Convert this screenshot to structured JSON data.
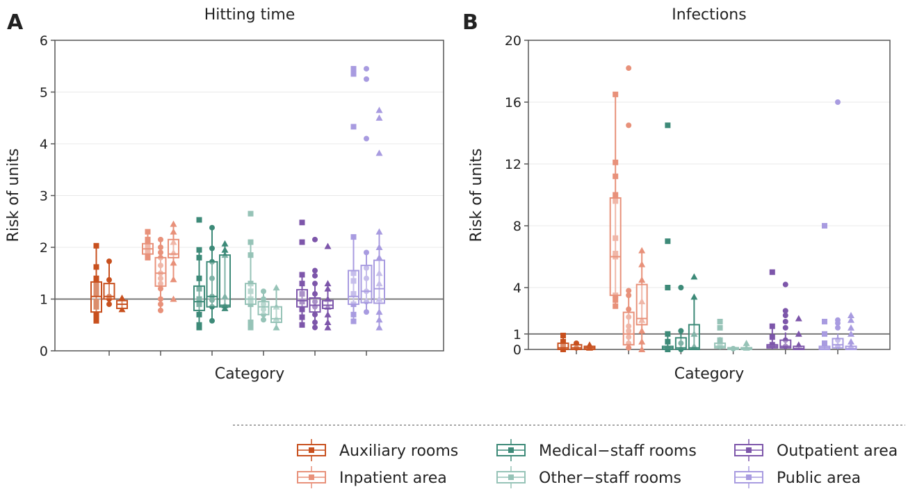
{
  "legend": [
    {
      "label": "Auxiliary rooms",
      "color": "#c8501e"
    },
    {
      "label": "Inpatient area",
      "color": "#e8917a"
    },
    {
      "label": "Medical−staff rooms",
      "color": "#3d8a78"
    },
    {
      "label": "Other−staff rooms",
      "color": "#96c3b7"
    },
    {
      "label": "Outpatient area",
      "color": "#7d56aa"
    },
    {
      "label": "Public area",
      "color": "#a89be0"
    }
  ],
  "chart_data": [
    {
      "panel": "A",
      "type": "box",
      "title": "Hitting time",
      "xlabel": "Category",
      "ylabel": "Risk of units",
      "ylim": [
        0,
        6
      ],
      "yticks": [
        0,
        1,
        2,
        3,
        4,
        5,
        6
      ],
      "reference_line": 1,
      "grid": true,
      "markers": [
        "square",
        "circle",
        "triangle"
      ],
      "categories": [
        "Auxiliary rooms",
        "Inpatient area",
        "Medical−staff rooms",
        "Other−staff rooms",
        "Outpatient area",
        "Public area"
      ],
      "boxes": [
        [
          {
            "q1": 0.75,
            "med": 1.05,
            "q3": 1.33,
            "lo": 0.58,
            "hi": 2.03,
            "pts": [
              2.03,
              1.62,
              1.4,
              1.3,
              1.2,
              1.1,
              0.95,
              0.85,
              0.7,
              0.62,
              0.58
            ]
          },
          {
            "q1": 1.0,
            "med": 1.05,
            "q3": 1.3,
            "lo": 0.9,
            "hi": 1.73,
            "pts": [
              1.73,
              1.37,
              1.05,
              1.0,
              0.9
            ]
          },
          {
            "q1": 0.82,
            "med": 0.9,
            "q3": 0.97,
            "lo": 0.8,
            "hi": 1.02,
            "pts": [
              1.02,
              0.8
            ]
          }
        ],
        [
          {
            "q1": 1.87,
            "med": 1.97,
            "q3": 2.07,
            "lo": 1.8,
            "hi": 2.3,
            "pts": [
              2.3,
              2.15,
              2.05,
              1.97,
              1.9,
              1.8
            ]
          },
          {
            "q1": 1.25,
            "med": 1.5,
            "q3": 1.8,
            "lo": 0.78,
            "hi": 2.15,
            "pts": [
              2.15,
              2.0,
              1.9,
              1.8,
              1.65,
              1.5,
              1.4,
              1.3,
              1.2,
              1.0,
              0.9,
              0.78
            ]
          },
          {
            "q1": 1.8,
            "med": 1.87,
            "q3": 2.15,
            "lo": 1.38,
            "hi": 2.45,
            "pts": [
              2.45,
              2.3,
              2.1,
              1.9,
              1.7,
              1.38,
              1.0
            ]
          }
        ],
        [
          {
            "q1": 0.78,
            "med": 0.95,
            "q3": 1.25,
            "lo": 0.45,
            "hi": 1.95,
            "pts": [
              2.53,
              1.95,
              1.8,
              1.4,
              1.2,
              1.0,
              0.9,
              0.7,
              0.5,
              0.45
            ]
          },
          {
            "q1": 0.85,
            "med": 1.05,
            "q3": 1.72,
            "lo": 0.58,
            "hi": 2.38,
            "pts": [
              2.38,
              1.98,
              1.72,
              1.4,
              1.05,
              0.98,
              0.85,
              0.58
            ]
          },
          {
            "q1": 0.85,
            "med": 0.88,
            "q3": 1.85,
            "lo": 0.8,
            "hi": 2.07,
            "pts": [
              2.07,
              1.95,
              1.85,
              1.05,
              0.88,
              0.82
            ]
          }
        ],
        [
          {
            "q1": 0.9,
            "med": 1.0,
            "q3": 1.3,
            "lo": 0.45,
            "hi": 2.1,
            "pts": [
              2.65,
              2.1,
              1.85,
              1.3,
              1.15,
              1.0,
              0.9,
              0.55,
              0.45
            ]
          },
          {
            "q1": 0.7,
            "med": 0.85,
            "q3": 0.95,
            "lo": 0.6,
            "hi": 1.15,
            "pts": [
              1.15,
              1.0,
              0.9,
              0.8,
              0.7,
              0.6
            ]
          },
          {
            "q1": 0.55,
            "med": 0.62,
            "q3": 0.85,
            "lo": 0.45,
            "hi": 1.22,
            "pts": [
              1.22,
              0.85,
              0.62,
              0.45
            ]
          }
        ],
        [
          {
            "q1": 0.85,
            "med": 0.97,
            "q3": 1.18,
            "lo": 0.5,
            "hi": 1.47,
            "pts": [
              2.48,
              2.1,
              1.47,
              1.3,
              1.1,
              0.95,
              0.8,
              0.65,
              0.5
            ]
          },
          {
            "q1": 0.75,
            "med": 0.88,
            "q3": 1.02,
            "lo": 0.45,
            "hi": 1.3,
            "pts": [
              2.15,
              1.55,
              1.45,
              1.3,
              1.1,
              0.95,
              0.85,
              0.7,
              0.55,
              0.45
            ]
          },
          {
            "q1": 0.82,
            "med": 0.88,
            "q3": 0.97,
            "lo": 0.45,
            "hi": 1.3,
            "pts": [
              2.02,
              1.3,
              1.2,
              1.0,
              0.85,
              0.7,
              0.55,
              0.45
            ]
          }
        ],
        [
          {
            "q1": 0.9,
            "med": 1.05,
            "q3": 1.55,
            "lo": 0.57,
            "hi": 2.2,
            "pts": [
              5.45,
              5.35,
              4.33,
              2.2,
              1.5,
              1.35,
              1.1,
              0.9,
              0.7,
              0.57
            ]
          },
          {
            "q1": 0.93,
            "med": 1.15,
            "q3": 1.65,
            "lo": 0.75,
            "hi": 1.9,
            "pts": [
              5.45,
              5.25,
              4.1,
              1.9,
              1.6,
              1.4,
              1.15,
              0.95,
              0.75
            ]
          },
          {
            "q1": 0.92,
            "med": 1.2,
            "q3": 1.75,
            "lo": 0.45,
            "hi": 2.3,
            "pts": [
              4.65,
              4.5,
              3.82,
              2.3,
              2.0,
              1.8,
              1.5,
              1.3,
              1.0,
              0.75,
              0.6,
              0.45
            ]
          }
        ]
      ]
    },
    {
      "panel": "B",
      "type": "box",
      "title": "Infections",
      "xlabel": "Category",
      "ylabel": "Risk of units",
      "ylim": [
        0,
        20
      ],
      "yticks": [
        0,
        1,
        4,
        8,
        12,
        16,
        20
      ],
      "reference_line": 1,
      "grid": true,
      "markers": [
        "square",
        "circle",
        "triangle"
      ],
      "categories": [
        "Auxiliary rooms",
        "Inpatient area",
        "Medical−staff rooms",
        "Other−staff rooms",
        "Outpatient area",
        "Public area"
      ],
      "boxes": [
        [
          {
            "q1": 0,
            "med": 0.1,
            "q3": 0.4,
            "lo": 0,
            "hi": 0.9,
            "pts": [
              0.9,
              0.5,
              0.2,
              0
            ]
          },
          {
            "q1": 0,
            "med": 0.1,
            "q3": 0.3,
            "lo": 0,
            "hi": 0.4,
            "pts": [
              0.4,
              0.1
            ]
          },
          {
            "q1": 0,
            "med": 0.1,
            "q3": 0.2,
            "lo": 0,
            "hi": 0.3,
            "pts": [
              0.3,
              0.1
            ]
          }
        ],
        [
          {
            "q1": 3.5,
            "med": 6.0,
            "q3": 9.8,
            "lo": 2.8,
            "hi": 16.5,
            "pts": [
              16.5,
              12.1,
              11.2,
              10.0,
              9.6,
              7.2,
              6.2,
              6.0,
              3.5,
              3.2,
              2.8
            ]
          },
          {
            "q1": 0.3,
            "med": 1.0,
            "q3": 2.4,
            "lo": 0,
            "hi": 3.8,
            "pts": [
              18.2,
              14.5,
              3.8,
              3.5,
              2.6,
              2.1,
              1.5,
              1.2,
              0.8,
              0.4,
              0.1
            ]
          },
          {
            "q1": 1.6,
            "med": 2.0,
            "q3": 4.2,
            "lo": 0,
            "hi": 6.4,
            "pts": [
              6.4,
              5.5,
              4.5,
              3.1,
              1.9,
              1.2,
              0.5,
              0
            ]
          }
        ],
        [
          {
            "q1": 0,
            "med": 0.1,
            "q3": 0.2,
            "lo": 0,
            "hi": 1.0,
            "pts": [
              14.5,
              7.0,
              4.0,
              1.0,
              0.5,
              0
            ]
          },
          {
            "q1": 0,
            "med": 0.1,
            "q3": 0.75,
            "lo": 0,
            "hi": 1.2,
            "pts": [
              4.0,
              1.2,
              0.4,
              0
            ]
          },
          {
            "q1": 0,
            "med": 0.1,
            "q3": 1.6,
            "lo": 0,
            "hi": 3.4,
            "pts": [
              4.7,
              3.4,
              1.0,
              0.2
            ]
          }
        ],
        [
          {
            "q1": 0.1,
            "med": 0.2,
            "q3": 0.4,
            "lo": 0,
            "hi": 0.8,
            "pts": [
              1.8,
              1.4,
              0.6,
              0.2
            ]
          },
          {
            "q1": 0,
            "med": 0.05,
            "q3": 0.1,
            "lo": 0,
            "hi": 0.1,
            "pts": [
              0.05
            ]
          },
          {
            "q1": 0,
            "med": 0.05,
            "q3": 0.1,
            "lo": 0,
            "hi": 0.2,
            "pts": [
              0.4,
              0.1
            ]
          }
        ],
        [
          {
            "q1": 0.1,
            "med": 0.2,
            "q3": 0.3,
            "lo": 0,
            "hi": 1.5,
            "pts": [
              5.0,
              1.5,
              0.8,
              0.3
            ]
          },
          {
            "q1": 0.1,
            "med": 0.2,
            "q3": 0.6,
            "lo": 0,
            "hi": 1.1,
            "pts": [
              4.2,
              2.5,
              2.2,
              1.8,
              1.4,
              0.6,
              0.2
            ]
          },
          {
            "q1": 0,
            "med": 0.05,
            "q3": 0.2,
            "lo": 0,
            "hi": 0.3,
            "pts": [
              2.0,
              1.0,
              0.3
            ]
          }
        ],
        [
          {
            "q1": 0,
            "med": 0.1,
            "q3": 0.2,
            "lo": 0,
            "hi": 0.4,
            "pts": [
              8.0,
              1.8,
              1.0,
              0.4
            ]
          },
          {
            "q1": 0.1,
            "med": 0.3,
            "q3": 0.7,
            "lo": 0,
            "hi": 1.0,
            "pts": [
              16.0,
              1.9,
              1.7,
              1.4,
              0.6,
              0.2
            ]
          },
          {
            "q1": 0,
            "med": 0.05,
            "q3": 0.2,
            "lo": 0,
            "hi": 0.3,
            "pts": [
              2.2,
              1.9,
              1.4,
              1.0,
              0.5,
              0.2
            ]
          }
        ]
      ]
    }
  ]
}
